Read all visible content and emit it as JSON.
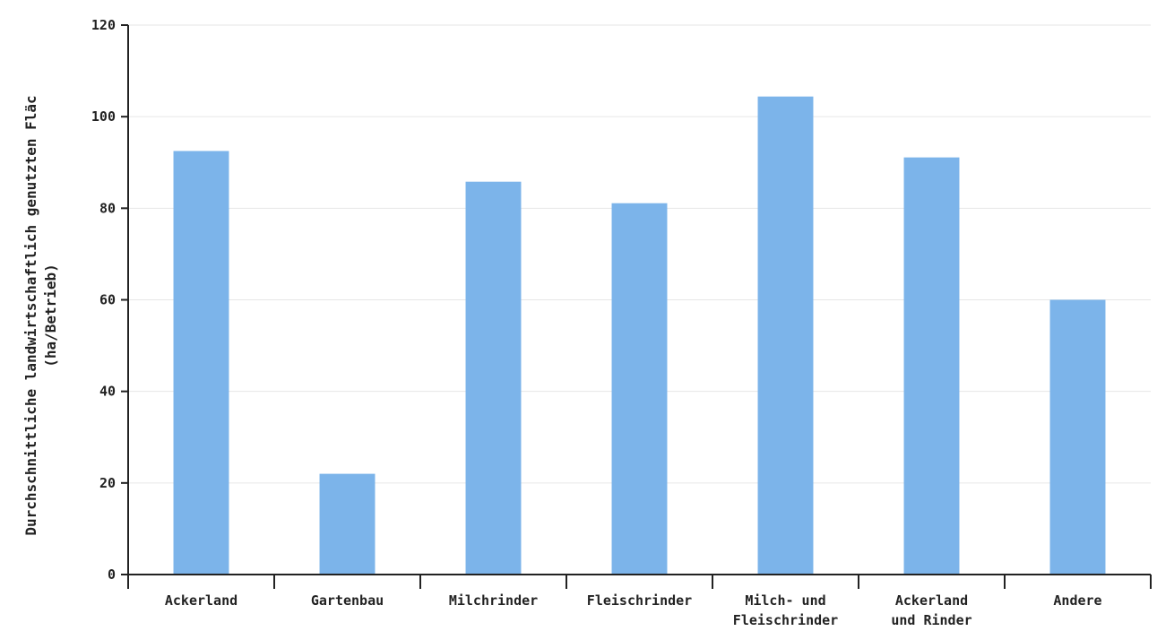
{
  "chart_data": {
    "type": "bar",
    "ylabel": [
      "Durchschnittliche landwirtschaftlich genutzten Fläc",
      "(ha/Betrieb)"
    ],
    "xlabel": "",
    "ylim": [
      0,
      120
    ],
    "yticks": [
      0,
      20,
      40,
      60,
      80,
      100,
      120
    ],
    "grid": true,
    "bar_color": "#7cb4ea",
    "categories": [
      [
        "Ackerland"
      ],
      [
        "Gartenbau"
      ],
      [
        "Milchrinder"
      ],
      [
        "Fleischrinder"
      ],
      [
        "Milch- und",
        "Fleischrinder"
      ],
      [
        "Ackerland",
        "und Rinder"
      ],
      [
        "Andere"
      ]
    ],
    "values": [
      92.5,
      22.0,
      85.8,
      81.1,
      104.4,
      91.1,
      60.0
    ]
  }
}
